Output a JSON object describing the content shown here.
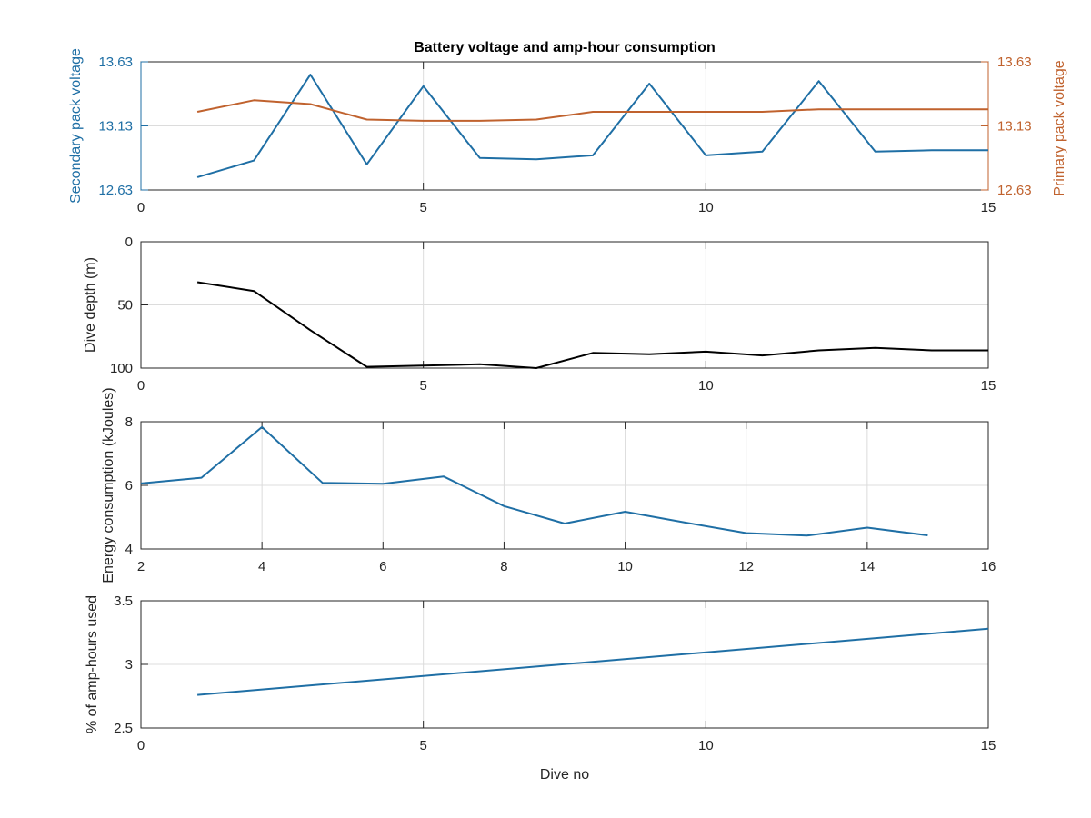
{
  "colors": {
    "blue": "#1f6fa5",
    "orange": "#c0622e",
    "black": "#000000",
    "grid": "#dcdcdc",
    "axis": "#262626"
  },
  "chart_data": [
    {
      "type": "line",
      "title": "Battery voltage and amp-hour consumption",
      "xlim": [
        0,
        15
      ],
      "xticks": [
        0,
        5,
        10,
        15
      ],
      "grid": true,
      "left_axis": {
        "label": "Secondary pack voltage",
        "ylim": [
          12.63,
          13.63
        ],
        "ticks": [
          "12.63",
          "13.13",
          "13.63"
        ],
        "color": "#1f6fa5"
      },
      "right_axis": {
        "label": "Primary pack voltage",
        "ylim": [
          12.63,
          13.63
        ],
        "ticks": [
          "12.63",
          "13.13",
          "13.63"
        ],
        "color": "#c0622e"
      },
      "series": [
        {
          "axis": "left",
          "color": "#1f6fa5",
          "x": [
            1,
            2,
            3,
            4,
            5,
            6,
            7,
            8,
            9,
            10,
            11,
            12,
            13,
            14,
            15
          ],
          "y": [
            12.73,
            12.86,
            13.53,
            12.83,
            13.44,
            12.88,
            12.87,
            12.9,
            13.46,
            12.9,
            12.93,
            13.48,
            12.93,
            12.94,
            12.94
          ]
        },
        {
          "axis": "right",
          "color": "#c0622e",
          "x": [
            1,
            2,
            3,
            4,
            5,
            6,
            7,
            8,
            9,
            10,
            11,
            12,
            13,
            14,
            15
          ],
          "y": [
            13.24,
            13.33,
            13.3,
            13.18,
            13.17,
            13.17,
            13.18,
            13.24,
            13.24,
            13.24,
            13.24,
            13.26,
            13.26,
            13.26,
            13.26
          ]
        }
      ]
    },
    {
      "type": "line",
      "ylabel": "Dive depth (m)",
      "xlim": [
        0,
        15
      ],
      "xticks": [
        0,
        5,
        10,
        15
      ],
      "ylim": [
        0,
        100
      ],
      "yticks": [
        0,
        50,
        100
      ],
      "y_reversed": true,
      "grid": true,
      "series": [
        {
          "color": "#000000",
          "x": [
            1,
            2,
            3,
            4,
            5,
            6,
            7,
            8,
            9,
            10,
            11,
            12,
            13,
            14,
            15
          ],
          "y": [
            32,
            39,
            70,
            99,
            98,
            97,
            100,
            88,
            89,
            87,
            90,
            86,
            84,
            86,
            86
          ]
        }
      ]
    },
    {
      "type": "line",
      "ylabel": "Energy consumption (kJoules)",
      "xlim": [
        2,
        16
      ],
      "xticks": [
        2,
        4,
        6,
        8,
        10,
        12,
        14,
        16
      ],
      "ylim": [
        4,
        8
      ],
      "yticks": [
        4,
        6,
        8
      ],
      "grid": true,
      "series": [
        {
          "color": "#1f6fa5",
          "x": [
            2,
            3,
            4,
            5,
            6,
            7,
            8,
            9,
            10,
            11,
            12,
            13,
            14,
            15
          ],
          "y": [
            6.06,
            6.24,
            7.83,
            6.08,
            6.05,
            6.28,
            5.35,
            4.8,
            5.17,
            4.83,
            4.5,
            4.42,
            4.67,
            4.43
          ]
        }
      ]
    },
    {
      "type": "line",
      "ylabel": "% of amp-hours used",
      "xlabel": "Dive no",
      "xlim": [
        0,
        15
      ],
      "xticks": [
        0,
        5,
        10,
        15
      ],
      "ylim": [
        2.5,
        3.5
      ],
      "yticks": [
        "2.5",
        "3",
        "3.5"
      ],
      "grid": true,
      "series": [
        {
          "color": "#1f6fa5",
          "x": [
            1,
            15
          ],
          "y": [
            2.76,
            3.28
          ]
        }
      ]
    }
  ]
}
